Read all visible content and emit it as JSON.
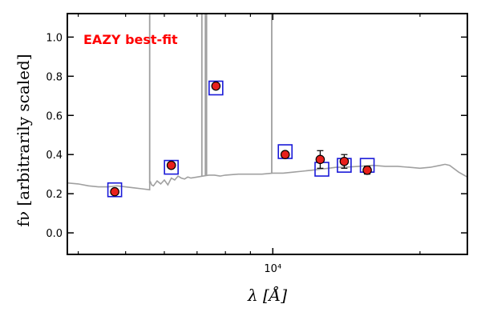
{
  "colors": {
    "model": "#a0a0a0",
    "observed": "#e8201c",
    "model_box": "#1a1ad8",
    "annotation": "#ff0000"
  },
  "chart_data": {
    "type": "scatter",
    "title": "",
    "annotation": "EAZY best-fit",
    "xlabel": "λ [Å]",
    "ylabel": "fν [arbitrarily scaled]",
    "xscale": "log",
    "xlim": [
      3800,
      25000
    ],
    "ylim": [
      -0.11,
      1.12
    ],
    "yticks": [
      0.0,
      0.2,
      0.4,
      0.6,
      0.8,
      1.0
    ],
    "ytick_labels": [
      "0.0",
      "0.2",
      "0.4",
      "0.6",
      "0.8",
      "1.0"
    ],
    "xticks": [
      10000
    ],
    "xtick_labels": [
      "10⁴"
    ],
    "grid": false,
    "series": [
      {
        "kind": "observed photometry (points with error bars)",
        "points": [
          {
            "x": 4750,
            "y": 0.21,
            "err": 0.0
          },
          {
            "x": 6200,
            "y": 0.345,
            "err": 0.0
          },
          {
            "x": 7650,
            "y": 0.75,
            "err": 0.0
          },
          {
            "x": 10600,
            "y": 0.4,
            "err": 0.015
          },
          {
            "x": 12500,
            "y": 0.375,
            "err": 0.045
          },
          {
            "x": 14000,
            "y": 0.365,
            "err": 0.035
          },
          {
            "x": 15600,
            "y": 0.32,
            "err": 0.02
          }
        ]
      },
      {
        "kind": "model band fluxes (open squares)",
        "points": [
          {
            "x": 4750,
            "y": 0.22
          },
          {
            "x": 6200,
            "y": 0.335
          },
          {
            "x": 7650,
            "y": 0.74
          },
          {
            "x": 10600,
            "y": 0.415
          },
          {
            "x": 12600,
            "y": 0.325
          },
          {
            "x": 14000,
            "y": 0.345
          },
          {
            "x": 15600,
            "y": 0.345
          }
        ]
      },
      {
        "kind": "best-fit template spectrum (grey line)",
        "x": [
          3800,
          4000,
          4200,
          4400,
          4600,
          4800,
          5000,
          5200,
          5400,
          5599,
          5600,
          5620,
          5650,
          5700,
          5800,
          5900,
          6000,
          6100,
          6200,
          6300,
          6400,
          6500,
          6600,
          6700,
          6800,
          7000,
          7200,
          7400,
          7600,
          7800,
          8000,
          8500,
          9000,
          9500,
          10000,
          10500,
          11000,
          11500,
          12000,
          12500,
          13000,
          13500,
          14000,
          15000,
          16000,
          17000,
          18000,
          19000,
          20000,
          21000,
          22000,
          22500,
          23000,
          24000,
          25000
        ],
        "y": [
          0.255,
          0.25,
          0.24,
          0.235,
          0.235,
          0.24,
          0.235,
          0.23,
          0.225,
          0.22,
          0.255,
          0.26,
          0.245,
          0.24,
          0.265,
          0.25,
          0.27,
          0.245,
          0.28,
          0.27,
          0.29,
          0.28,
          0.275,
          0.285,
          0.28,
          0.285,
          0.29,
          0.295,
          0.295,
          0.29,
          0.295,
          0.3,
          0.3,
          0.3,
          0.305,
          0.305,
          0.31,
          0.315,
          0.32,
          0.325,
          0.33,
          0.335,
          0.335,
          0.34,
          0.345,
          0.34,
          0.34,
          0.335,
          0.33,
          0.335,
          0.345,
          0.35,
          0.345,
          0.31,
          0.285
        ]
      },
      {
        "kind": "template emission lines (grey spikes)",
        "lines": [
          {
            "x": 5600,
            "y": 1.12
          },
          {
            "x": 7160,
            "y": 1.12
          },
          {
            "x": 7280,
            "y": 1.12
          },
          {
            "x": 7320,
            "y": 1.12
          },
          {
            "x": 9950,
            "y": 1.12
          }
        ]
      }
    ]
  }
}
